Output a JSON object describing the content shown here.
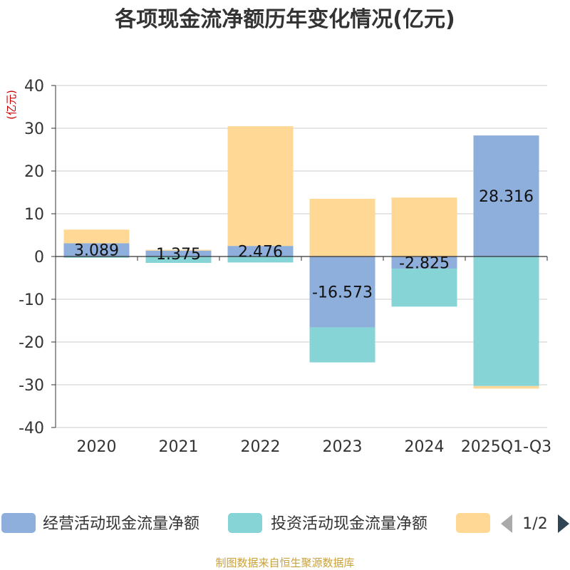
{
  "chart_data": {
    "type": "bar",
    "stacked": true,
    "title": "各项现金流净额历年变化情况(亿元)",
    "ylabel": "(亿元)",
    "xlabel": "",
    "ylim": [
      -40,
      40
    ],
    "yticks": [
      40,
      30,
      20,
      10,
      0,
      -10,
      -20,
      -30,
      -40
    ],
    "categories": [
      "2020",
      "2021",
      "2022",
      "2023",
      "2024",
      "2025Q1-Q3"
    ],
    "series": [
      {
        "name": "经营活动现金流量净额",
        "color": "#8eaedb",
        "values": [
          3.089,
          1.375,
          2.476,
          -16.573,
          -2.825,
          28.316
        ],
        "labels": [
          "3.089",
          "1.375",
          "2.476",
          "-16.573",
          "-2.825",
          "28.316"
        ]
      },
      {
        "name": "投资活动现金流量净额",
        "color": "#86d4d6",
        "values": [
          -0.3,
          -1.5,
          -1.4,
          -8.2,
          -8.9,
          -30.3
        ]
      },
      {
        "name": "",
        "color": "#ffd896",
        "values": [
          3.2,
          0.2,
          28.0,
          13.5,
          13.8,
          -0.6
        ]
      }
    ],
    "legend": {
      "position": "bottom",
      "page": "1/2"
    },
    "source": "制图数据来自恒生聚源数据库"
  }
}
